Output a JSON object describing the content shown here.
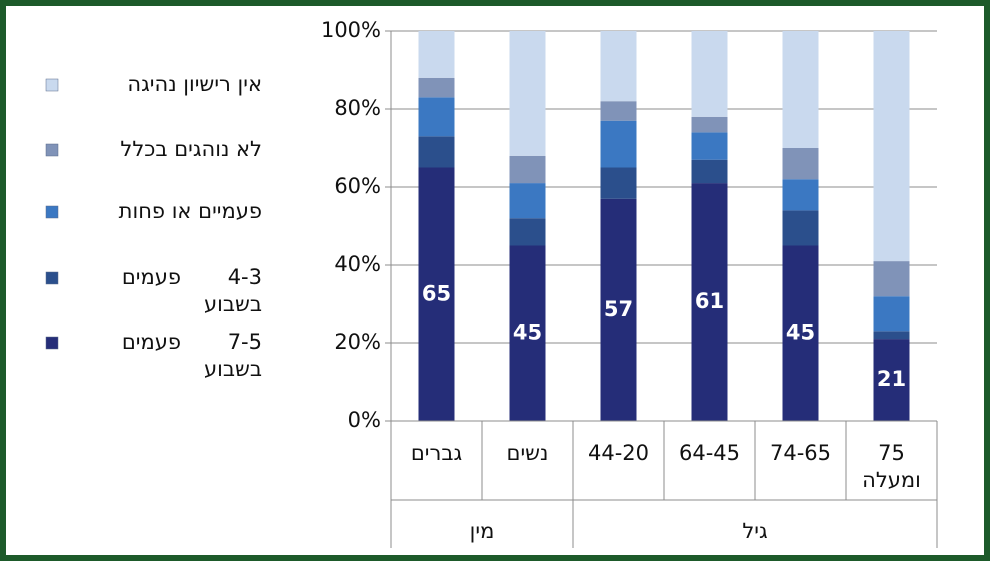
{
  "chart_data": {
    "type": "stacked_bar_100",
    "categories": [
      "גברים",
      "נשים",
      "44-20",
      "64-45",
      "74-65",
      "75 ומעלה"
    ],
    "groups": [
      {
        "name": "מין",
        "span": 2
      },
      {
        "name": "גיל",
        "span": 4
      }
    ],
    "series": [
      {
        "name": "7-5 פעמים בשבוע",
        "color": "#252d78",
        "values": [
          65,
          45,
          57,
          61,
          45,
          21
        ],
        "show_labels": true
      },
      {
        "name": "4-3 פעמים בשבוע",
        "color": "#2b4f8c",
        "values": [
          8,
          7,
          8,
          6,
          9,
          2
        ],
        "show_labels": false
      },
      {
        "name": "פעמיים או פחות",
        "color": "#3b78c2",
        "values": [
          10,
          9,
          12,
          7,
          8,
          9
        ],
        "show_labels": false
      },
      {
        "name": "לא נוהגים בכלל",
        "color": "#8093b8",
        "values": [
          5,
          7,
          5,
          4,
          8,
          9
        ],
        "show_labels": false
      },
      {
        "name": "אין רישיון נהיגה",
        "color": "#c9d9ee",
        "values": [
          12,
          32,
          18,
          22,
          30,
          59
        ],
        "show_labels": false
      }
    ],
    "ylim": [
      0,
      100
    ],
    "yticks": [
      {
        "value": 0,
        "label": "0%"
      },
      {
        "value": 20,
        "label": "20%"
      },
      {
        "value": 40,
        "label": "40%"
      },
      {
        "value": 60,
        "label": "60%"
      },
      {
        "value": 80,
        "label": "80%"
      },
      {
        "value": 100,
        "label": "100%"
      }
    ],
    "grid": true
  }
}
